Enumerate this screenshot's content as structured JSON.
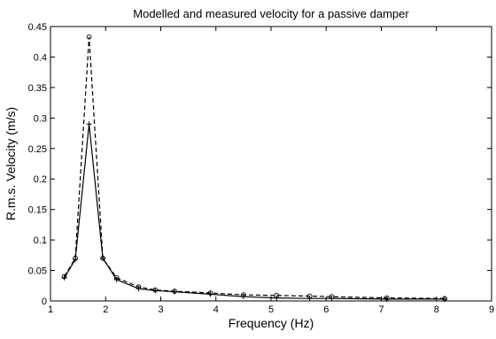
{
  "chart_data": {
    "type": "line",
    "title": "Modelled and measured velocity for a passive damper",
    "xlabel": "Frequency (Hz)",
    "ylabel": "R.m.s. Velocity (m/s)",
    "xlim": [
      1,
      9
    ],
    "ylim": [
      0,
      0.45
    ],
    "xticks": [
      1,
      2,
      3,
      4,
      5,
      6,
      7,
      8,
      9
    ],
    "yticks": [
      0,
      0.05,
      0.1,
      0.15,
      0.2,
      0.25,
      0.3,
      0.35,
      0.4,
      0.45
    ],
    "xtick_labels": [
      "1",
      "2",
      "3",
      "4",
      "5",
      "6",
      "7",
      "8",
      "9"
    ],
    "ytick_labels": [
      "0",
      "0.05",
      "0.1",
      "0.15",
      "0.2",
      "0.25",
      "0.3",
      "0.35",
      "0.4",
      "0.45"
    ],
    "grid": false,
    "series": [
      {
        "style": "dashed",
        "marker": "circle",
        "color": "#000000",
        "x": [
          1.25,
          1.45,
          1.7,
          1.95,
          2.2,
          2.6,
          2.9,
          3.25,
          3.9,
          4.5,
          5.1,
          5.7,
          6.1,
          7.1,
          8.15
        ],
        "y": [
          0.04,
          0.07,
          0.433,
          0.07,
          0.038,
          0.023,
          0.018,
          0.016,
          0.013,
          0.01,
          0.009,
          0.008,
          0.007,
          0.005,
          0.004
        ]
      },
      {
        "style": "solid",
        "marker": "plus",
        "color": "#000000",
        "x": [
          1.25,
          1.45,
          1.7,
          1.95,
          2.2,
          2.6,
          2.9,
          3.25,
          3.9,
          4.5,
          5.1,
          5.7,
          6.1,
          7.1,
          8.15
        ],
        "y": [
          0.038,
          0.068,
          0.29,
          0.07,
          0.035,
          0.02,
          0.017,
          0.015,
          0.011,
          0.007,
          0.005,
          0.004,
          0.004,
          0.003,
          0.003
        ]
      }
    ]
  }
}
